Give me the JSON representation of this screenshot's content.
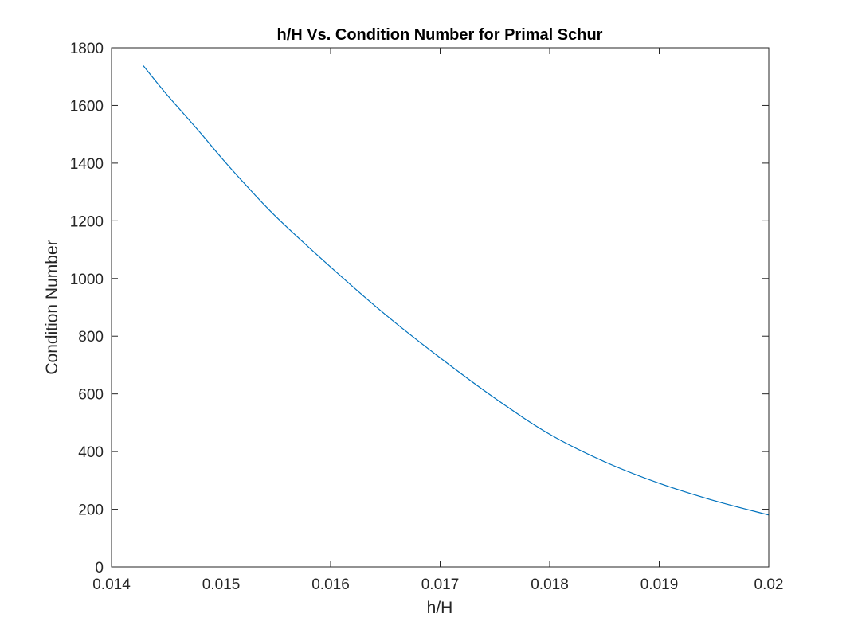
{
  "chart_data": {
    "type": "line",
    "title": "h/H Vs. Condition Number for Primal Schur",
    "xlabel": "h/H",
    "ylabel": "Condition Number",
    "xlim": [
      0.014,
      0.02
    ],
    "ylim": [
      0,
      1800
    ],
    "xticks": [
      0.014,
      0.015,
      0.016,
      0.017,
      0.018,
      0.019,
      0.02
    ],
    "xtick_labels": [
      "0.014",
      "0.015",
      "0.016",
      "0.017",
      "0.018",
      "0.019",
      "0.02"
    ],
    "yticks": [
      0,
      200,
      400,
      600,
      800,
      1000,
      1200,
      1400,
      1600,
      1800
    ],
    "ytick_labels": [
      "0",
      "200",
      "400",
      "600",
      "800",
      "1000",
      "1200",
      "1400",
      "1600",
      "1800"
    ],
    "grid": false,
    "box": true,
    "series": [
      {
        "color": "#0072BD",
        "x": [
          0.01429,
          0.0145,
          0.0148,
          0.015,
          0.0152,
          0.0155,
          0.016,
          0.0165,
          0.017,
          0.0175,
          0.018,
          0.0185,
          0.019,
          0.0195,
          0.02
        ],
        "y": [
          1738,
          1640,
          1510,
          1420,
          1335,
          1215,
          1040,
          875,
          725,
          585,
          460,
          365,
          290,
          230,
          180
        ]
      }
    ]
  }
}
